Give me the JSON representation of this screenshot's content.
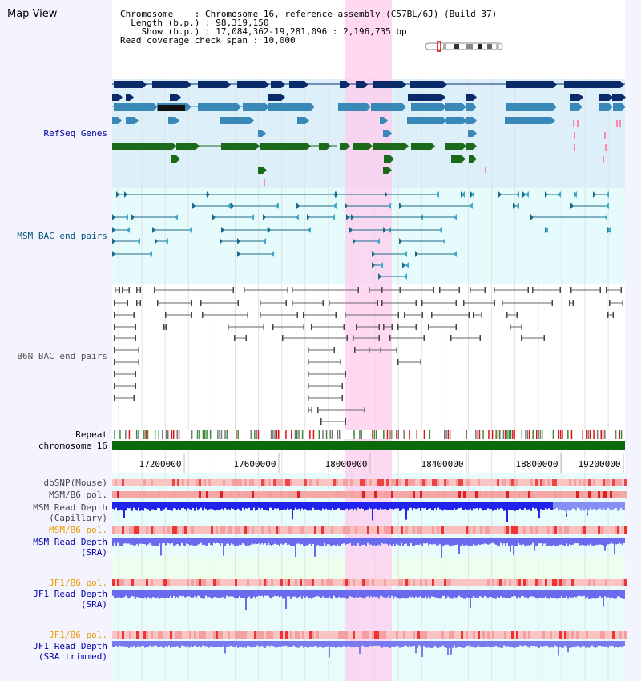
{
  "title": "Map View",
  "header": {
    "chromosome_label": "Chromosome",
    "chromosome_value": "Chromosome 16, reference assembly (C57BL/6J) (Build 37)",
    "length_label": "Length (b.p.)",
    "length_value": "98,319,150",
    "show_label": "Show (b.p.)",
    "show_value": "17,084,362-19,281,096 : 2,196,735 bp",
    "coverage_label": "Read coverage check span",
    "coverage_value": "10,000"
  },
  "tracks": {
    "refseq": "RefSeq Genes",
    "msm_bac": "MSM BAC end pairs",
    "b6n_bac": "B6N BAC end pairs",
    "repeat": "Repeat",
    "chromosome": "chromosome 16",
    "dbsnp": "dbSNP(Mouse)",
    "msm_b6_pol_1": "MSM/B6 pol.",
    "msm_read_depth_cap_1": "MSM Read Depth",
    "msm_read_depth_cap_2": "(Capillary)",
    "msm_b6_pol_2": "MSM/B6 pol.",
    "msm_read_depth_sra_1": "MSM Read Depth",
    "msm_read_depth_sra_2": "(SRA)",
    "jf1_b6_pol_1": "JF1/B6 pol.",
    "jf1_read_depth_sra_1": "JF1 Read Depth",
    "jf1_read_depth_sra_2": "(SRA)",
    "jf1_b6_pol_2": "JF1/B6 pol.",
    "jf1_read_depth_trim_1": "JF1 Read Depth",
    "jf1_read_depth_trim_2": "(SRA trimmed)"
  },
  "axis": {
    "ticks": [
      "17200000",
      "17600000",
      "18000000",
      "18400000",
      "18800000",
      "19200000"
    ]
  },
  "colors": {
    "refseq_label": "#000099",
    "msm_label": "#005577",
    "b6n_label": "#555555",
    "orange_label": "#ee9900",
    "blue_label": "#0000aa",
    "highlight": "#ffccee"
  }
}
